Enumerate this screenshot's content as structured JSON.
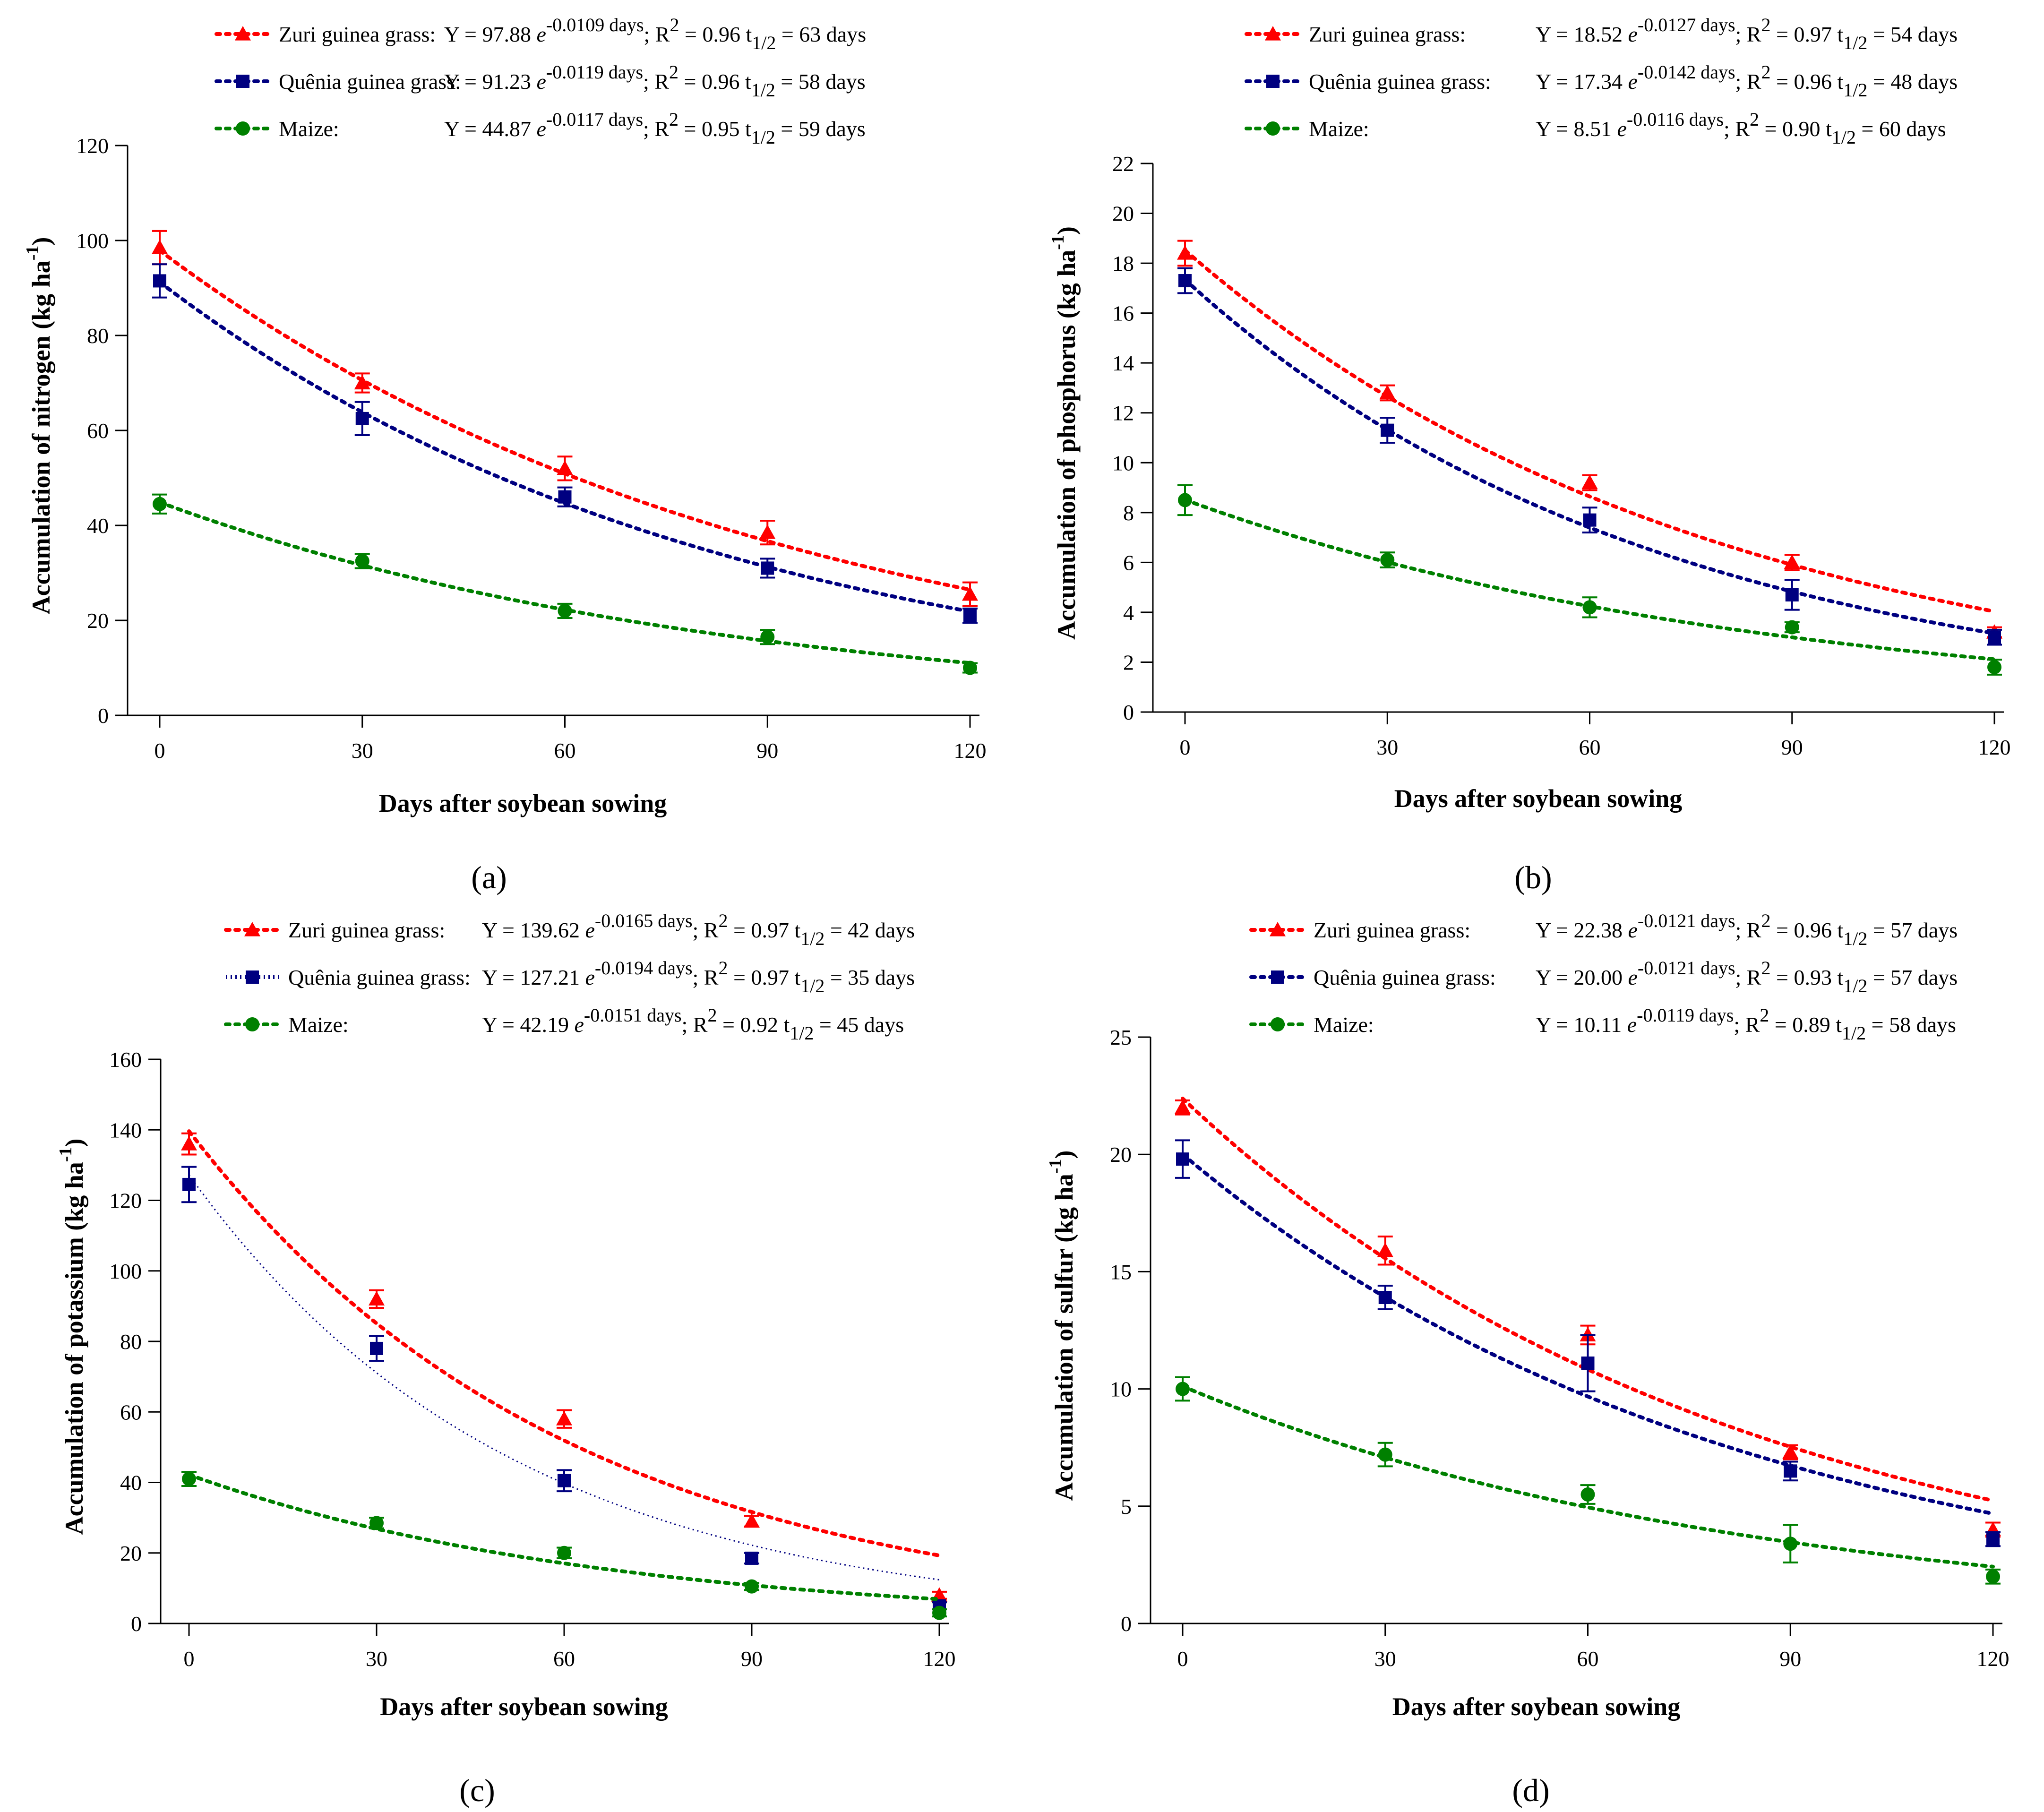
{
  "colors": {
    "zuri": "#ff0000",
    "quenia": "#000080",
    "maize": "#008000"
  },
  "chart_data": [
    {
      "type": "scatter",
      "panel_label": "(a)",
      "xlabel": "Days after soybean sowing",
      "ylabel": "Accumulation of nitrogen (kg ha",
      "ylabel_sup": "-1",
      "ylabel_close": ")",
      "xlim": [
        0,
        120
      ],
      "ylim": [
        0,
        120
      ],
      "xticks": [
        0,
        30,
        60,
        90,
        120
      ],
      "yticks": [
        0,
        20,
        40,
        60,
        80,
        100,
        120
      ],
      "series": [
        {
          "name": "Zuri guinea grass:",
          "key": "zuri",
          "marker": "triangle",
          "line": "dotted-thick",
          "a": 97.88,
          "k": 0.0109,
          "eq_prefix": "Y = 97.88",
          "eq_exp": "-0.0109 days",
          "eq_r2": "; R",
          "eq_r2_val": " = 0.96 t",
          "eq_half": " = 63 days",
          "x": [
            0,
            30,
            60,
            90,
            120
          ],
          "y": [
            98.5,
            70,
            52,
            38.5,
            25.5
          ],
          "err": [
            3.5,
            2,
            2.5,
            2.5,
            2.5
          ]
        },
        {
          "name": "Quênia guinea grass:",
          "key": "quenia",
          "marker": "square",
          "line": "dotted-thick",
          "a": 91.23,
          "k": 0.0119,
          "eq_prefix": "Y = 91.23",
          "eq_exp": "-0.0119 days",
          "eq_r2": "; R",
          "eq_r2_val": " = 0.96  t",
          "eq_half": " = 58 days",
          "x": [
            0,
            30,
            60,
            90,
            120
          ],
          "y": [
            91.5,
            62.5,
            46,
            31,
            21
          ],
          "err": [
            3.5,
            3.5,
            2,
            2,
            1.5
          ]
        },
        {
          "name": "Maize:",
          "key": "maize",
          "marker": "circle",
          "line": "dotted-thick",
          "a": 44.87,
          "k": 0.0117,
          "eq_prefix": "Y = 44.87",
          "eq_exp": "-0.0117 days",
          "eq_r2": "; R",
          "eq_r2_val": " = 0.95  t",
          "eq_half": " = 59 days",
          "x": [
            0,
            30,
            60,
            90,
            120
          ],
          "y": [
            44.5,
            32.5,
            22,
            16.5,
            10
          ],
          "err": [
            2,
            1.5,
            1.5,
            1.5,
            1
          ]
        }
      ]
    },
    {
      "type": "scatter",
      "panel_label": "(b)",
      "xlabel": "Days after soybean sowing",
      "ylabel": "Accumulation of phosphorus (kg ha",
      "ylabel_sup": "-1",
      "ylabel_close": ")",
      "xlim": [
        0,
        120
      ],
      "ylim": [
        0,
        22
      ],
      "xticks": [
        0,
        30,
        60,
        90,
        120
      ],
      "yticks": [
        0,
        2,
        4,
        6,
        8,
        10,
        12,
        14,
        16,
        18,
        20,
        22
      ],
      "series": [
        {
          "name": "Zuri guinea grass:",
          "key": "zuri",
          "marker": "triangle",
          "line": "dotted-thick",
          "a": 18.52,
          "k": 0.0127,
          "eq_prefix": "Y = 18.52",
          "eq_exp": "-0.0127 days",
          "eq_r2": "; R",
          "eq_r2_val": " = 0.97 t",
          "eq_half": " = 54 days",
          "x": [
            0,
            30,
            60,
            90,
            120
          ],
          "y": [
            18.4,
            12.8,
            9.2,
            6,
            3.2
          ],
          "err": [
            0.5,
            0.3,
            0.3,
            0.3,
            0.2
          ]
        },
        {
          "name": "Quênia guinea grass:",
          "key": "quenia",
          "marker": "square",
          "line": "dotted-thick",
          "a": 17.34,
          "k": 0.0142,
          "eq_prefix": "Y = 17.34",
          "eq_exp": "-0.0142 days",
          "eq_r2": "; R",
          "eq_r2_val": " = 0.96  t",
          "eq_half": " = 48 days",
          "x": [
            0,
            30,
            60,
            90,
            120
          ],
          "y": [
            17.3,
            11.3,
            7.7,
            4.7,
            3
          ],
          "err": [
            0.5,
            0.5,
            0.5,
            0.6,
            0.3
          ]
        },
        {
          "name": "Maize:",
          "key": "maize",
          "marker": "circle",
          "line": "dotted-thick",
          "a": 8.51,
          "k": 0.0116,
          "eq_prefix": "Y = 8.51",
          "eq_exp": "-0.0116 days",
          "eq_r2": "; R",
          "eq_r2_val": " = 0.90  t",
          "eq_half": " =  60 days",
          "x": [
            0,
            30,
            60,
            90,
            120
          ],
          "y": [
            8.5,
            6.1,
            4.2,
            3.4,
            1.8
          ],
          "err": [
            0.6,
            0.3,
            0.4,
            0.2,
            0.3
          ]
        }
      ]
    },
    {
      "type": "scatter",
      "panel_label": "(c)",
      "xlabel": "Days after soybean sowing",
      "ylabel": "Accumulation of potassium (kg ha",
      "ylabel_sup": "-1",
      "ylabel_close": ")",
      "xlim": [
        0,
        120
      ],
      "ylim": [
        0,
        160
      ],
      "xticks": [
        0,
        30,
        60,
        90,
        120
      ],
      "yticks": [
        0,
        20,
        40,
        60,
        80,
        100,
        120,
        140,
        160
      ],
      "series": [
        {
          "name": "Zuri guinea grass:",
          "key": "zuri",
          "marker": "triangle",
          "line": "dotted-thick",
          "a": 139.62,
          "k": 0.0165,
          "eq_prefix": "Y = 139.62",
          "eq_exp": "-0.0165 days",
          "eq_r2": "; R",
          "eq_r2_val": " = 0.97 t",
          "eq_half": " = 42 days",
          "x": [
            0,
            30,
            60,
            90,
            120
          ],
          "y": [
            136,
            92,
            58,
            29,
            8
          ],
          "err": [
            3,
            2.5,
            2.5,
            1.5,
            1
          ]
        },
        {
          "name": "Quênia guinea grass:",
          "key": "quenia",
          "marker": "square",
          "line": "dotted-thin",
          "a": 127.21,
          "k": 0.0194,
          "eq_prefix": "Y = 127.21",
          "eq_exp": "-0.0194 days",
          "eq_r2": "; R",
          "eq_r2_val": " = 0.97  t",
          "eq_half": " = 35 days",
          "x": [
            0,
            30,
            60,
            90,
            120
          ],
          "y": [
            124.5,
            78,
            40.5,
            18.5,
            5
          ],
          "err": [
            5,
            3.5,
            3,
            1.5,
            1
          ]
        },
        {
          "name": "Maize:",
          "key": "maize",
          "marker": "circle",
          "line": "dotted-thick",
          "a": 42.19,
          "k": 0.0151,
          "eq_prefix": "Y =  42.19",
          "eq_exp": "-0.0151 days",
          "eq_r2": "; R",
          "eq_r2_val": " = 0.92  t",
          "eq_half": " =  45 days",
          "x": [
            0,
            30,
            60,
            90,
            120
          ],
          "y": [
            41,
            28.5,
            20,
            10.5,
            3
          ],
          "err": [
            2,
            1.5,
            1.5,
            1,
            1
          ]
        }
      ]
    },
    {
      "type": "scatter",
      "panel_label": "(d)",
      "xlabel": "Days after soybean sowing",
      "ylabel": "Accumulation of sulfur (kg ha",
      "ylabel_sup": "-1",
      "ylabel_close": ")",
      "xlim": [
        0,
        120
      ],
      "ylim": [
        0,
        25
      ],
      "xticks": [
        0,
        30,
        60,
        90,
        120
      ],
      "yticks": [
        0,
        5,
        10,
        15,
        20,
        25
      ],
      "series": [
        {
          "name": "Zuri guinea grass:",
          "key": "zuri",
          "marker": "triangle",
          "line": "dotted-thick",
          "a": 22.38,
          "k": 0.0121,
          "eq_prefix": "Y = 22.38",
          "eq_exp": "-0.0121 days",
          "eq_r2": "; R",
          "eq_r2_val": " = 0.96 t",
          "eq_half": " = 57 days",
          "x": [
            0,
            30,
            60,
            90,
            120
          ],
          "y": [
            22,
            15.9,
            12.3,
            7.3,
            4
          ],
          "err": [
            0.3,
            0.6,
            0.4,
            0.3,
            0.3
          ]
        },
        {
          "name": "Quênia guinea grass:",
          "key": "quenia",
          "marker": "square",
          "line": "dotted-thick",
          "a": 20.0,
          "k": 0.0121,
          "eq_prefix": "Y = 20.00",
          "eq_exp": "-0.0121 days",
          "eq_r2": "; R",
          "eq_r2_val": " = 0.93  t",
          "eq_half": " = 57 days",
          "x": [
            0,
            30,
            60,
            90,
            120
          ],
          "y": [
            19.8,
            13.9,
            11.1,
            6.5,
            3.6
          ],
          "err": [
            0.8,
            0.5,
            1.2,
            0.4,
            0.3
          ]
        },
        {
          "name": "Maize:",
          "key": "maize",
          "marker": "circle",
          "line": "dotted-thick",
          "a": 10.11,
          "k": 0.0119,
          "eq_prefix": "Y = 10.11",
          "eq_exp": "-0.0119 days",
          "eq_r2": "; R",
          "eq_r2_val": " = 0.89  t",
          "eq_half": " = 58 days",
          "x": [
            0,
            30,
            60,
            90,
            120
          ],
          "y": [
            10,
            7.2,
            5.5,
            3.4,
            2
          ],
          "err": [
            0.5,
            0.5,
            0.4,
            0.8,
            0.3
          ]
        }
      ]
    }
  ]
}
